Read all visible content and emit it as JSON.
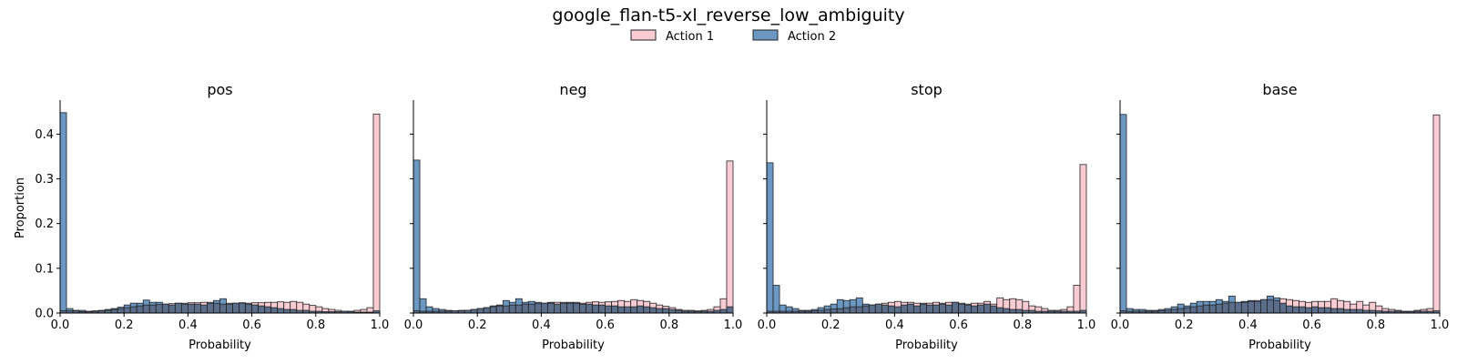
{
  "chart_data": {
    "type": "histogram",
    "title": "google_flan-t5-xl_reverse_low_ambiguity",
    "legend": {
      "placement": "top-center",
      "entries": [
        {
          "name": "Action 1",
          "color": "#f9ccd3"
        },
        {
          "name": "Action 2",
          "color": "#6a98c2"
        }
      ]
    },
    "bin_edges": [
      0.0,
      1.0
    ],
    "bin_count": 50,
    "ylim": [
      0,
      0.47
    ],
    "yticks": [
      0.0,
      0.1,
      0.2,
      0.3,
      0.4
    ],
    "xticks": [
      0.0,
      0.2,
      0.4,
      0.6,
      0.8,
      1.0
    ],
    "xlabel": "Probability",
    "ylabel": "Proportion",
    "shared_y": true,
    "colors": {
      "action1": "#f9ccd3",
      "action2": "#6a98c2",
      "overlap": "#5a6d8a",
      "edge": "#222222"
    },
    "panels": [
      {
        "title": "pos",
        "series": [
          {
            "name": "Action 1",
            "values": [
              0.005,
              0.005,
              0.005,
              0.003,
              0.003,
              0.004,
              0.005,
              0.006,
              0.008,
              0.01,
              0.012,
              0.014,
              0.016,
              0.018,
              0.018,
              0.019,
              0.02,
              0.021,
              0.022,
              0.022,
              0.023,
              0.023,
              0.024,
              0.024,
              0.022,
              0.02,
              0.022,
              0.022,
              0.023,
              0.022,
              0.023,
              0.023,
              0.024,
              0.024,
              0.025,
              0.024,
              0.026,
              0.024,
              0.02,
              0.017,
              0.014,
              0.01,
              0.008,
              0.006,
              0.004,
              0.004,
              0.006,
              0.008,
              0.012,
              0.445
            ]
          },
          {
            "name": "Action 2",
            "values": [
              0.448,
              0.01,
              0.006,
              0.006,
              0.004,
              0.005,
              0.006,
              0.008,
              0.01,
              0.013,
              0.018,
              0.022,
              0.022,
              0.029,
              0.024,
              0.024,
              0.02,
              0.018,
              0.022,
              0.02,
              0.02,
              0.02,
              0.018,
              0.022,
              0.028,
              0.032,
              0.02,
              0.022,
              0.022,
              0.02,
              0.018,
              0.016,
              0.014,
              0.012,
              0.01,
              0.008,
              0.008,
              0.006,
              0.006,
              0.004,
              0.004,
              0.003,
              0.003,
              0.003,
              0.004,
              0.003,
              0.002,
              0.002,
              0.002,
              0.005
            ]
          }
        ]
      },
      {
        "title": "neg",
        "series": [
          {
            "name": "Action 1",
            "values": [
              0.005,
              0.004,
              0.004,
              0.004,
              0.004,
              0.004,
              0.005,
              0.006,
              0.006,
              0.008,
              0.01,
              0.012,
              0.014,
              0.016,
              0.016,
              0.018,
              0.018,
              0.02,
              0.02,
              0.021,
              0.022,
              0.022,
              0.024,
              0.024,
              0.022,
              0.024,
              0.022,
              0.024,
              0.025,
              0.024,
              0.025,
              0.026,
              0.028,
              0.026,
              0.03,
              0.028,
              0.026,
              0.022,
              0.018,
              0.015,
              0.012,
              0.008,
              0.006,
              0.006,
              0.005,
              0.006,
              0.008,
              0.014,
              0.032,
              0.34
            ]
          },
          {
            "name": "Action 2",
            "values": [
              0.342,
              0.032,
              0.014,
              0.01,
              0.008,
              0.006,
              0.005,
              0.005,
              0.006,
              0.008,
              0.01,
              0.012,
              0.016,
              0.018,
              0.028,
              0.024,
              0.032,
              0.024,
              0.026,
              0.024,
              0.022,
              0.024,
              0.02,
              0.022,
              0.024,
              0.022,
              0.02,
              0.02,
              0.018,
              0.018,
              0.016,
              0.016,
              0.014,
              0.014,
              0.014,
              0.016,
              0.014,
              0.012,
              0.01,
              0.01,
              0.008,
              0.006,
              0.004,
              0.004,
              0.003,
              0.004,
              0.004,
              0.006,
              0.008,
              0.014
            ]
          }
        ]
      },
      {
        "title": "stop",
        "series": [
          {
            "name": "Action 1",
            "values": [
              0.004,
              0.004,
              0.004,
              0.004,
              0.004,
              0.004,
              0.004,
              0.005,
              0.006,
              0.008,
              0.009,
              0.01,
              0.012,
              0.014,
              0.014,
              0.016,
              0.018,
              0.02,
              0.022,
              0.024,
              0.026,
              0.024,
              0.024,
              0.022,
              0.022,
              0.022,
              0.024,
              0.022,
              0.024,
              0.024,
              0.022,
              0.02,
              0.022,
              0.022,
              0.026,
              0.02,
              0.034,
              0.03,
              0.032,
              0.03,
              0.026,
              0.016,
              0.014,
              0.01,
              0.006,
              0.006,
              0.008,
              0.014,
              0.062,
              0.332
            ]
          },
          {
            "name": "Action 2",
            "values": [
              0.336,
              0.062,
              0.018,
              0.014,
              0.01,
              0.006,
              0.006,
              0.008,
              0.012,
              0.016,
              0.02,
              0.03,
              0.028,
              0.03,
              0.034,
              0.02,
              0.018,
              0.02,
              0.018,
              0.016,
              0.014,
              0.018,
              0.02,
              0.016,
              0.02,
              0.018,
              0.018,
              0.02,
              0.018,
              0.024,
              0.02,
              0.018,
              0.016,
              0.018,
              0.02,
              0.016,
              0.012,
              0.01,
              0.008,
              0.008,
              0.006,
              0.006,
              0.004,
              0.004,
              0.004,
              0.004,
              0.004,
              0.004,
              0.004,
              0.006
            ]
          }
        ]
      },
      {
        "title": "base",
        "series": [
          {
            "name": "Action 1",
            "values": [
              0.005,
              0.004,
              0.004,
              0.004,
              0.004,
              0.004,
              0.005,
              0.006,
              0.008,
              0.01,
              0.012,
              0.014,
              0.016,
              0.018,
              0.018,
              0.02,
              0.022,
              0.024,
              0.024,
              0.024,
              0.026,
              0.028,
              0.03,
              0.03,
              0.028,
              0.032,
              0.03,
              0.028,
              0.026,
              0.024,
              0.026,
              0.026,
              0.026,
              0.032,
              0.028,
              0.026,
              0.02,
              0.026,
              0.018,
              0.024,
              0.016,
              0.01,
              0.008,
              0.006,
              0.004,
              0.004,
              0.006,
              0.008,
              0.01,
              0.443
            ]
          },
          {
            "name": "Action 2",
            "values": [
              0.444,
              0.01,
              0.008,
              0.008,
              0.006,
              0.006,
              0.008,
              0.01,
              0.014,
              0.02,
              0.016,
              0.022,
              0.026,
              0.026,
              0.026,
              0.03,
              0.026,
              0.038,
              0.024,
              0.026,
              0.028,
              0.026,
              0.03,
              0.038,
              0.034,
              0.022,
              0.016,
              0.014,
              0.014,
              0.012,
              0.014,
              0.012,
              0.012,
              0.01,
              0.01,
              0.008,
              0.008,
              0.008,
              0.006,
              0.006,
              0.005,
              0.004,
              0.004,
              0.004,
              0.003,
              0.003,
              0.004,
              0.004,
              0.004,
              0.005
            ]
          }
        ]
      }
    ]
  }
}
